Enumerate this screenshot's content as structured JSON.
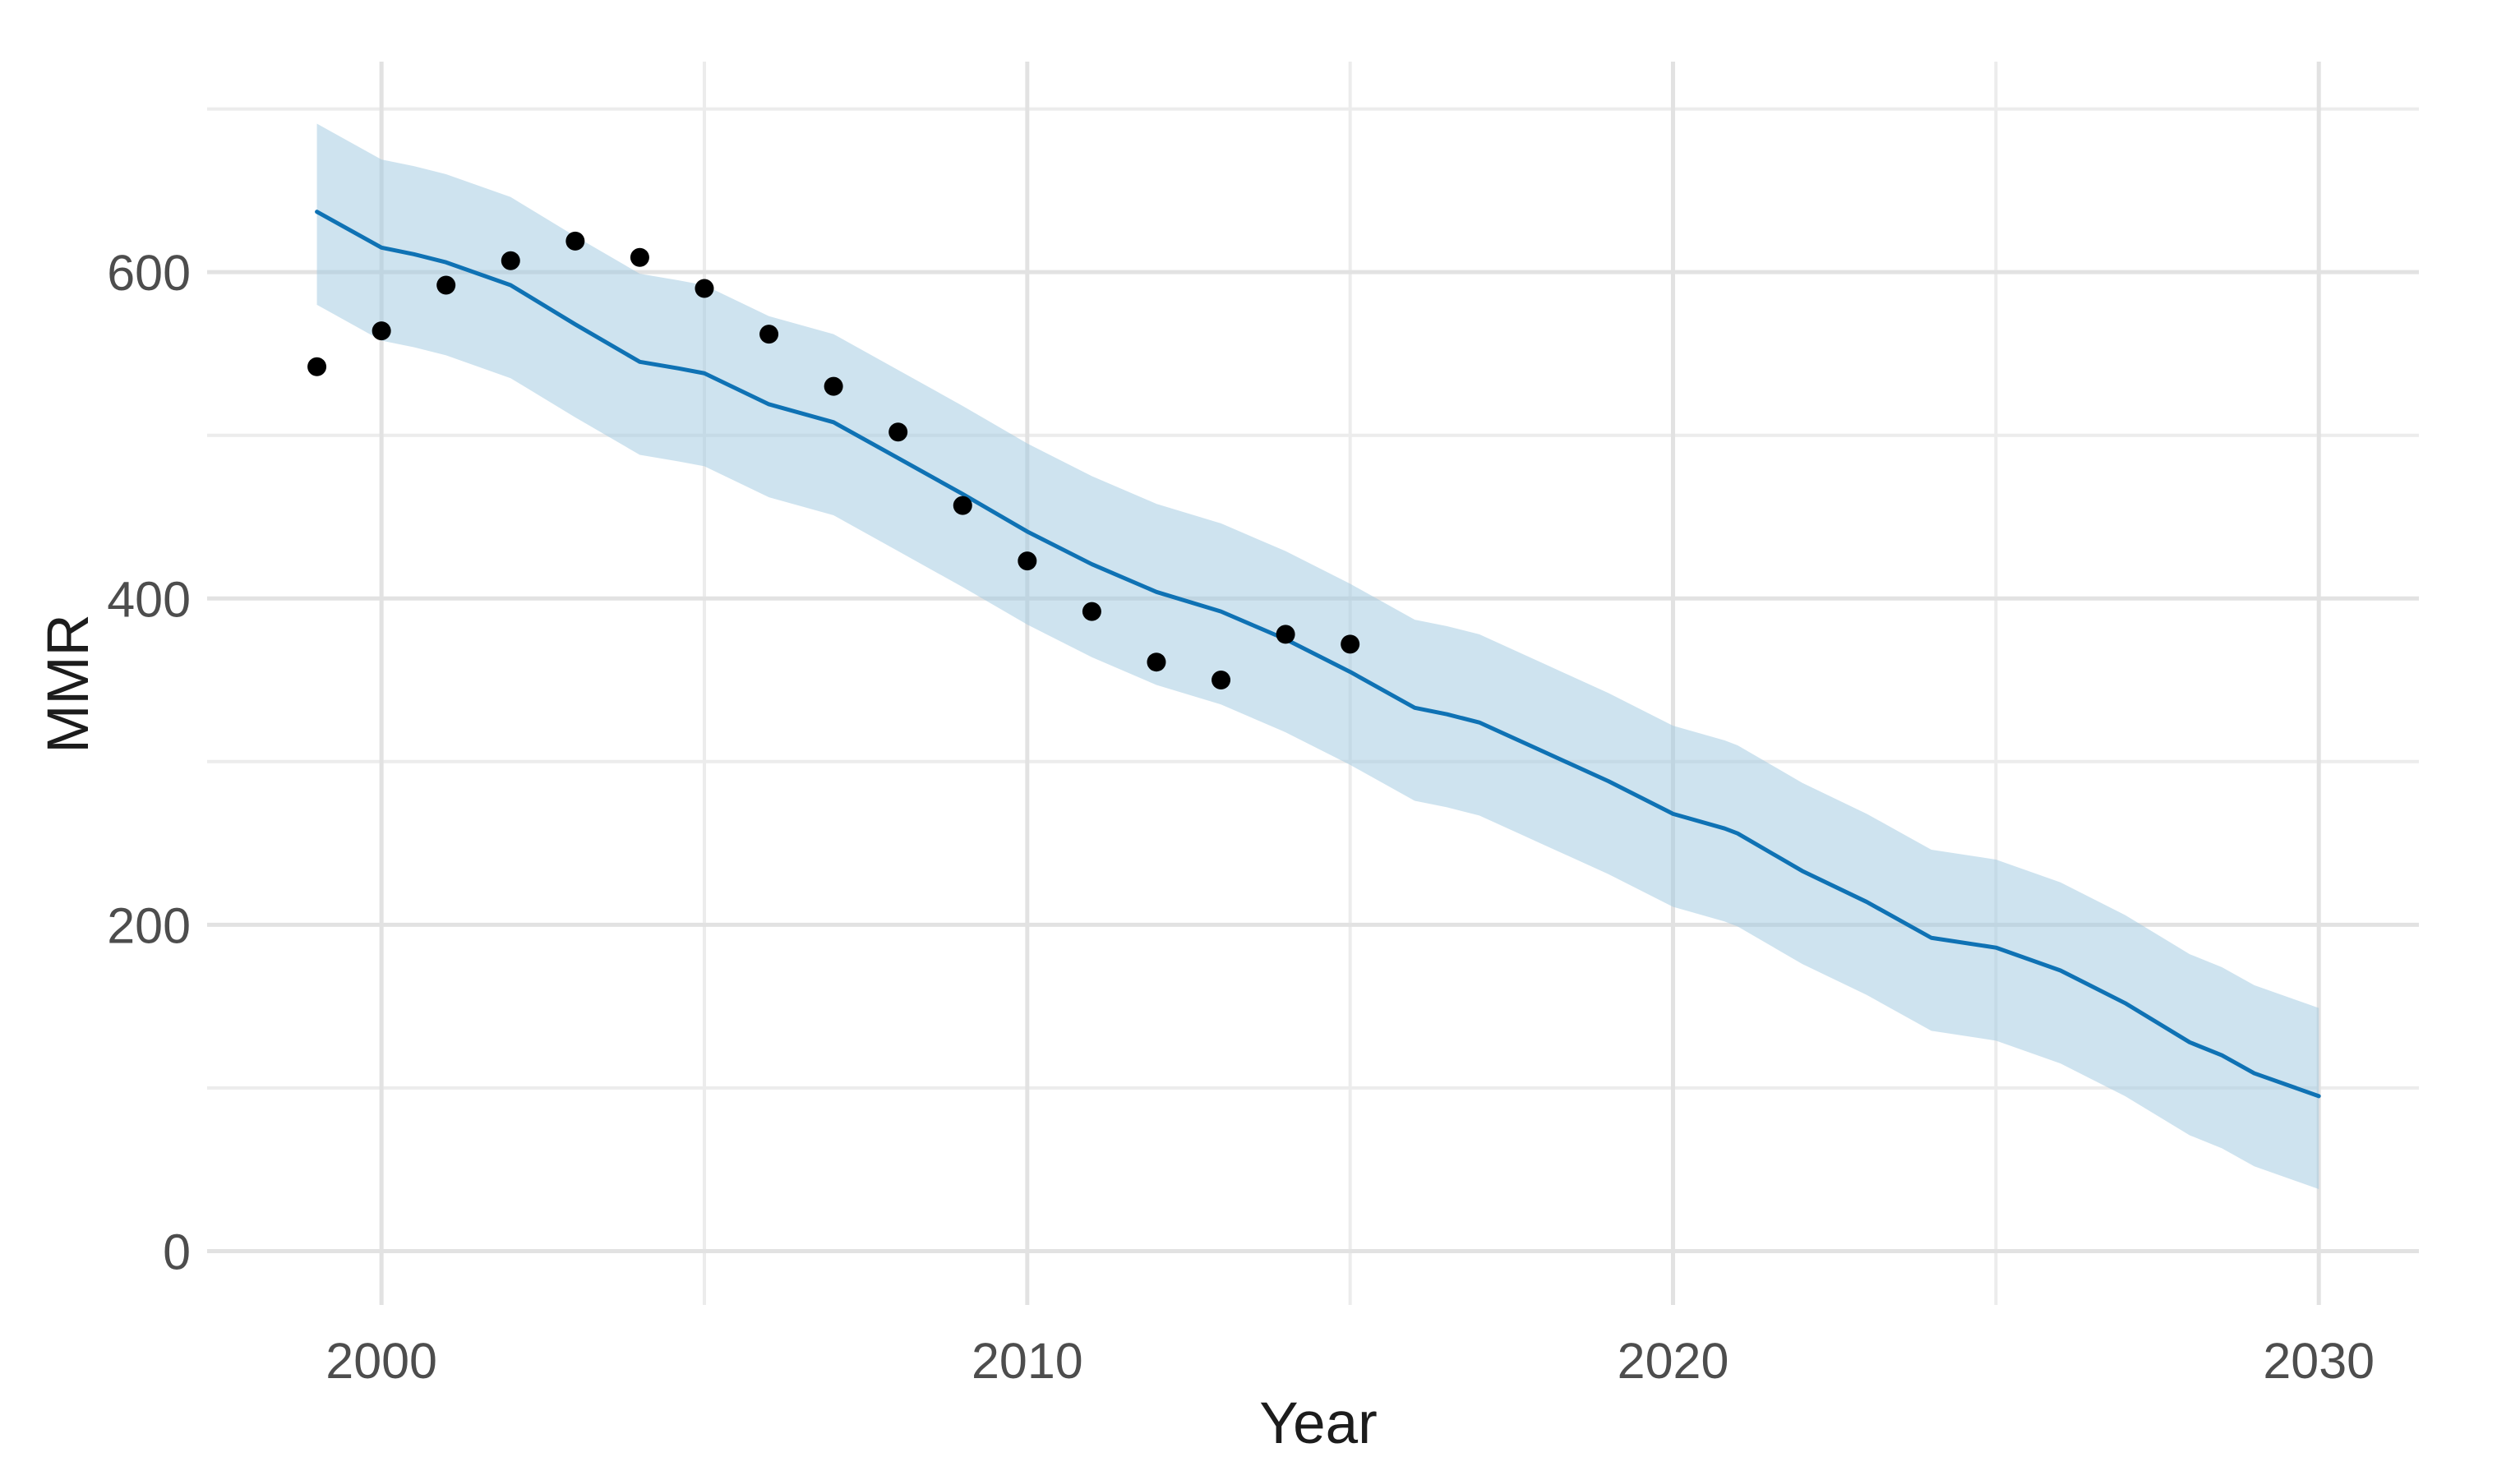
{
  "chart_data": {
    "type": "line",
    "title": "",
    "xlabel": "Year",
    "ylabel": "MMR",
    "grid": "on",
    "legend": "none",
    "xlim": [
      1997.3,
      2031.55
    ],
    "ylim": [
      -33,
      729
    ],
    "x_ticks": [
      2000,
      2010,
      2020,
      2030
    ],
    "x_minor_ticks": [
      2005,
      2015,
      2025
    ],
    "y_ticks": [
      0,
      200,
      400,
      600
    ],
    "y_minor_ticks": [
      100,
      300,
      500,
      700
    ],
    "series": [
      {
        "name": "credible-interval-ribbon",
        "type": "ribbon",
        "color": "rgba(158,200,223,0.5)",
        "points": [
          [
            1999,
            580,
            691
          ],
          [
            2000,
            558,
            669
          ],
          [
            2000.5,
            554,
            665
          ],
          [
            2001,
            549,
            660
          ],
          [
            2002,
            535,
            646
          ],
          [
            2003,
            511,
            622
          ],
          [
            2004,
            488,
            599
          ],
          [
            2004.6,
            484,
            595
          ],
          [
            2005,
            481,
            592
          ],
          [
            2006,
            462,
            573
          ],
          [
            2007,
            451,
            562
          ],
          [
            2008,
            429,
            540
          ],
          [
            2009,
            407,
            518
          ],
          [
            2010,
            384,
            495
          ],
          [
            2011,
            364,
            475
          ],
          [
            2012,
            347,
            458
          ],
          [
            2013,
            335,
            446
          ],
          [
            2014,
            318,
            429
          ],
          [
            2015,
            298,
            409
          ],
          [
            2016,
            276,
            387
          ],
          [
            2016.5,
            272,
            383
          ],
          [
            2017,
            267,
            378
          ],
          [
            2018,
            249,
            360
          ],
          [
            2019,
            231,
            342
          ],
          [
            2020,
            211,
            322
          ],
          [
            2020.8,
            202,
            313
          ],
          [
            2021,
            199,
            310
          ],
          [
            2022,
            176,
            287
          ],
          [
            2023,
            157,
            268
          ],
          [
            2024,
            135,
            246
          ],
          [
            2025,
            129,
            240
          ],
          [
            2026,
            115,
            226
          ],
          [
            2027,
            95,
            206
          ],
          [
            2028,
            71,
            182
          ],
          [
            2028.5,
            63,
            174
          ],
          [
            2029,
            52,
            163
          ],
          [
            2030,
            38,
            149
          ]
        ]
      },
      {
        "name": "estimated-mmr-line",
        "type": "line",
        "color": "#0f72b4",
        "points": [
          [
            1999,
            637
          ],
          [
            2000,
            615
          ],
          [
            2000.5,
            611
          ],
          [
            2001,
            606
          ],
          [
            2002,
            592
          ],
          [
            2003,
            568
          ],
          [
            2004,
            545
          ],
          [
            2004.6,
            541
          ],
          [
            2005,
            538
          ],
          [
            2006,
            519
          ],
          [
            2007,
            508
          ],
          [
            2008,
            486
          ],
          [
            2009,
            464
          ],
          [
            2010,
            441
          ],
          [
            2011,
            421
          ],
          [
            2012,
            404
          ],
          [
            2013,
            392
          ],
          [
            2014,
            375
          ],
          [
            2015,
            355
          ],
          [
            2016,
            333
          ],
          [
            2016.5,
            329
          ],
          [
            2017,
            324
          ],
          [
            2018,
            306
          ],
          [
            2019,
            288
          ],
          [
            2020,
            268
          ],
          [
            2020.8,
            259
          ],
          [
            2021,
            256
          ],
          [
            2022,
            233
          ],
          [
            2023,
            214
          ],
          [
            2024,
            192
          ],
          [
            2025,
            186
          ],
          [
            2026,
            172
          ],
          [
            2027,
            152
          ],
          [
            2028,
            128
          ],
          [
            2028.5,
            120
          ],
          [
            2029,
            109
          ],
          [
            2030,
            95
          ]
        ]
      },
      {
        "name": "observed-mmr-points",
        "type": "scatter",
        "color": "#000000",
        "points": [
          [
            1999,
            542
          ],
          [
            2000,
            564
          ],
          [
            2001,
            592
          ],
          [
            2002,
            607
          ],
          [
            2003,
            619
          ],
          [
            2004,
            609
          ],
          [
            2005,
            590
          ],
          [
            2006,
            562
          ],
          [
            2007,
            530
          ],
          [
            2008,
            502
          ],
          [
            2009,
            457
          ],
          [
            2010,
            423
          ],
          [
            2011,
            392
          ],
          [
            2012,
            361
          ],
          [
            2013,
            350
          ],
          [
            2014,
            378
          ],
          [
            2015,
            372
          ]
        ]
      }
    ]
  },
  "colors": {
    "background": "#ffffff",
    "grid_major": "#e2e2e2",
    "grid_minor": "#ececec",
    "tick_label": "#4d4d4d",
    "axis_title": "#1c1c1c",
    "line": "#0f72b4",
    "ribbon": "rgba(158,200,223,0.5)",
    "point": "#000000"
  }
}
